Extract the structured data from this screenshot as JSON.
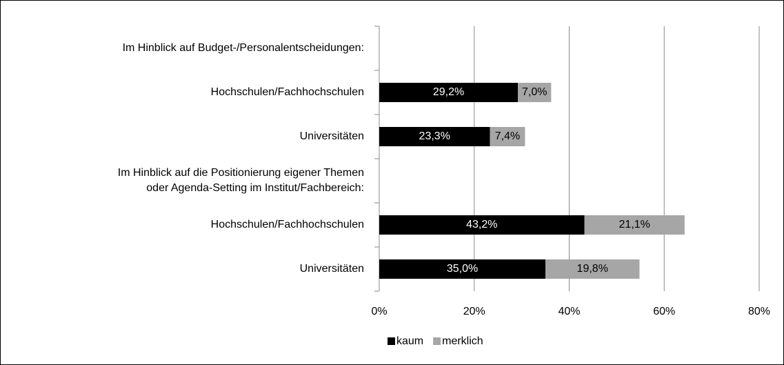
{
  "chart_data": {
    "type": "stacked_barh",
    "categories": [
      "Im Hinblick auf Budget-/Personalentscheidungen:",
      "Hochschulen/Fachhochschulen",
      "Universitäten",
      "Im Hinblick auf die Positionierung eigener Themen\noder Agenda-Setting im Institut/Fachbereich:",
      "Hochschulen/Fachhochschulen",
      "Universitäten"
    ],
    "series": [
      {
        "name": "kaum",
        "color": "#000000",
        "label_color": "#ffffff",
        "values": [
          null,
          29.2,
          23.3,
          null,
          43.2,
          35.0
        ],
        "value_labels": [
          null,
          "29,2%",
          "23,3%",
          null,
          "43,2%",
          "35,0%"
        ]
      },
      {
        "name": "merklich",
        "color": "#a6a6a6",
        "label_color": "#000000",
        "values": [
          null,
          7.0,
          7.4,
          null,
          21.1,
          19.8
        ],
        "value_labels": [
          null,
          "7,0%",
          "7,4%",
          null,
          "21,1%",
          "19,8%"
        ]
      }
    ],
    "xlim": [
      0,
      80
    ],
    "xticks": [
      {
        "value": 0,
        "label": "0%"
      },
      {
        "value": 20,
        "label": "20%"
      },
      {
        "value": 40,
        "label": "40%"
      },
      {
        "value": 60,
        "label": "60%"
      },
      {
        "value": 80,
        "label": "80%"
      }
    ],
    "grid": true,
    "legend": "bottom"
  }
}
